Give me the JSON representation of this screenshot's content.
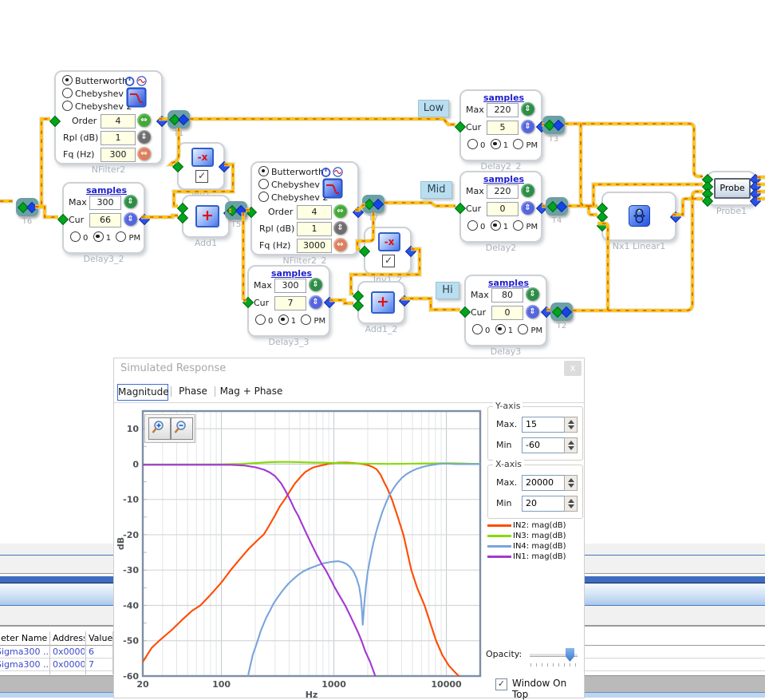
{
  "schematic": {
    "filters": [
      {
        "label": "NFilter2",
        "opt1": "Butterworth",
        "opt2": "Chebyshev 1",
        "opt3": "Chebyshev 2",
        "order_label": "Order",
        "order": "4",
        "rpl_label": "Rpl (dB)",
        "rpl": "1",
        "fq_label": "Fq (Hz)",
        "fq": "300",
        "selected_option": "Butterworth"
      },
      {
        "label": "NFilter2_2",
        "opt1": "Butterworth",
        "opt2": "Chebyshev 1",
        "opt3": "Chebyshev 2",
        "order_label": "Order",
        "order": "4",
        "rpl_label": "Rpl (dB)",
        "rpl": "1",
        "fq_label": "Fq (Hz)",
        "fq": "3000",
        "selected_option": "Butterworth"
      }
    ],
    "delays": [
      {
        "label": "Delay3_2",
        "link": "samples",
        "max_label": "Max",
        "max": "300",
        "cur_label": "Cur",
        "cur": "66",
        "opt0": "0",
        "opt1": "1",
        "optpm": "PM",
        "selected_option": "1"
      },
      {
        "label": "Delay3_3",
        "link": "samples",
        "max_label": "Max",
        "max": "300",
        "cur_label": "Cur",
        "cur": "7",
        "opt0": "0",
        "opt1": "1",
        "optpm": "PM",
        "selected_option": "1"
      },
      {
        "label": "Delay2_2",
        "link": "samples",
        "max_label": "Max",
        "max": "220",
        "cur_label": "Cur",
        "cur": "5",
        "opt0": "0",
        "opt1": "1",
        "optpm": "PM",
        "selected_option": "1"
      },
      {
        "label": "Delay2",
        "link": "samples",
        "max_label": "Max",
        "max": "220",
        "cur_label": "Cur",
        "cur": "0",
        "opt0": "0",
        "opt1": "1",
        "optpm": "PM",
        "selected_option": "1"
      },
      {
        "label": "Delay3",
        "link": "samples",
        "max_label": "Max",
        "max": "80",
        "cur_label": "Cur",
        "cur": "0",
        "opt0": "0",
        "opt1": "1",
        "optpm": "PM",
        "selected_option": "1"
      }
    ],
    "inverters": [
      {
        "label": "Inv1",
        "glyph": "-x",
        "checked": true
      },
      {
        "label": "Inv1_2",
        "glyph": "-x",
        "checked": true
      }
    ],
    "adders": [
      {
        "label": "Add1",
        "glyph": "+"
      },
      {
        "label": "Add1_2",
        "glyph": "+"
      }
    ],
    "tnodes": [
      {
        "label": "T6"
      },
      {
        "label": "T1"
      },
      {
        "label": "T5"
      },
      {
        "label": "T7"
      },
      {
        "label": "T3"
      },
      {
        "label": "T4"
      },
      {
        "label": "T2"
      }
    ],
    "tags": [
      {
        "text": "Low"
      },
      {
        "text": "Mid"
      },
      {
        "text": "Hi"
      }
    ],
    "mixer": {
      "label": "Nx1 Linear1"
    },
    "probe": {
      "button": "Probe",
      "label": "Probe1"
    }
  },
  "window": {
    "title": "Simulated Response",
    "close_glyph": "x",
    "tabs": [
      {
        "label": "Magnitude",
        "selected": true
      },
      {
        "label": "Phase",
        "selected": false
      },
      {
        "label": "Mag + Phase",
        "selected": false
      }
    ],
    "y_axis": {
      "title": "Y-axis",
      "max_label": "Max.",
      "max": "15",
      "min_label": "Min",
      "min": "-60"
    },
    "x_axis": {
      "title": "X-axis",
      "max_label": "Max.",
      "max": "20000",
      "min_label": "Min",
      "min": "20"
    },
    "legend": [
      {
        "label": "IN2: mag(dB)",
        "color": "#FF4B00"
      },
      {
        "label": "IN3: mag(dB)",
        "color": "#86DC00"
      },
      {
        "label": "IN4: mag(dB)",
        "color": "#7AA4DC"
      },
      {
        "label": "IN1: mag(dB)",
        "color": "#A238D2"
      }
    ],
    "opacity_label": "Opacity:",
    "window_on_top_label": "Window On Top",
    "window_on_top_checked": true
  },
  "table": {
    "headers": [
      "eter Name",
      "Address",
      "Value"
    ],
    "rows": [
      {
        "name": "Sigma300 ...",
        "address": "0x0000",
        "value": "6"
      },
      {
        "name": "Sigma300 ...",
        "address": "0x0000",
        "value": "7"
      }
    ]
  },
  "chart_data": {
    "type": "line",
    "x_scale": "log",
    "xlim": [
      20,
      20000
    ],
    "ylim": [
      -60,
      15
    ],
    "xticks": [
      20,
      100,
      1000,
      10000
    ],
    "yticks": [
      10,
      0,
      -10,
      -20,
      -30,
      -40,
      -50,
      -60
    ],
    "xlabel": "Hz",
    "ylabel": "dB",
    "grid": true,
    "legend_position": "right",
    "series": [
      {
        "name": "IN2: mag(dB)",
        "color": "#FF4B00",
        "points": [
          [
            20,
            -56
          ],
          [
            24,
            -52
          ],
          [
            28,
            -50
          ],
          [
            36,
            -47
          ],
          [
            45,
            -44
          ],
          [
            55,
            -41.5
          ],
          [
            65,
            -40
          ],
          [
            80,
            -37
          ],
          [
            100,
            -33.5
          ],
          [
            121,
            -30
          ],
          [
            145,
            -27
          ],
          [
            175,
            -24
          ],
          [
            210,
            -21.5
          ],
          [
            237,
            -20
          ],
          [
            265,
            -17.5
          ],
          [
            300,
            -14.5
          ],
          [
            330,
            -12
          ],
          [
            366,
            -10
          ],
          [
            410,
            -7.5
          ],
          [
            450,
            -5.5
          ],
          [
            510,
            -3.5
          ],
          [
            560,
            -2.2
          ],
          [
            640,
            -1.1
          ],
          [
            700,
            -0.7
          ],
          [
            800,
            -0.3
          ],
          [
            900,
            0.1
          ],
          [
            1100,
            0.4
          ],
          [
            1300,
            0.4
          ],
          [
            1500,
            0.3
          ],
          [
            1800,
            0
          ],
          [
            2000,
            -0.3
          ],
          [
            2200,
            -0.8
          ],
          [
            2400,
            -1.5
          ],
          [
            2600,
            -3
          ],
          [
            2780,
            -5
          ],
          [
            3000,
            -7
          ],
          [
            3280,
            -10
          ],
          [
            3700,
            -15
          ],
          [
            4150,
            -20
          ],
          [
            4500,
            -25
          ],
          [
            4880,
            -30
          ],
          [
            5500,
            -35
          ],
          [
            6400,
            -40
          ],
          [
            7200,
            -45
          ],
          [
            8100,
            -50
          ],
          [
            9200,
            -54
          ],
          [
            10500,
            -57
          ],
          [
            12000,
            -59
          ],
          [
            14000,
            -61
          ]
        ]
      },
      {
        "name": "IN3: mag(dB)",
        "color": "#86DC00",
        "points": [
          [
            20,
            -0.15
          ],
          [
            100,
            -0.1
          ],
          [
            150,
            0.05
          ],
          [
            200,
            0.3
          ],
          [
            250,
            0.5
          ],
          [
            320,
            0.6
          ],
          [
            400,
            0.6
          ],
          [
            500,
            0.55
          ],
          [
            650,
            0.45
          ],
          [
            800,
            0.4
          ],
          [
            1000,
            0.35
          ],
          [
            1300,
            0.25
          ],
          [
            1700,
            0.15
          ],
          [
            2200,
            0.1
          ],
          [
            3000,
            0.05
          ],
          [
            4500,
            0.1
          ],
          [
            6000,
            0.15
          ],
          [
            8000,
            0.2
          ],
          [
            10000,
            0.25
          ],
          [
            13000,
            0.2
          ],
          [
            17000,
            0.1
          ],
          [
            20000,
            0.1
          ]
        ]
      },
      {
        "name": "IN4: mag(dB)",
        "color": "#7AA4DC",
        "points": [
          [
            165,
            -64
          ],
          [
            175,
            -59
          ],
          [
            190,
            -54
          ],
          [
            205,
            -51
          ],
          [
            225,
            -47
          ],
          [
            250,
            -43.5
          ],
          [
            270,
            -41.5
          ],
          [
            290,
            -39.5
          ],
          [
            320,
            -37.5
          ],
          [
            350,
            -35.8
          ],
          [
            390,
            -34
          ],
          [
            430,
            -32.7
          ],
          [
            480,
            -31.4
          ],
          [
            540,
            -30.3
          ],
          [
            610,
            -29.5
          ],
          [
            700,
            -28.8
          ],
          [
            800,
            -28.1
          ],
          [
            900,
            -27.8
          ],
          [
            1000,
            -27.6
          ],
          [
            1100,
            -27.5
          ],
          [
            1200,
            -27.8
          ],
          [
            1300,
            -28.3
          ],
          [
            1400,
            -29.2
          ],
          [
            1500,
            -30.5
          ],
          [
            1600,
            -32.5
          ],
          [
            1680,
            -34.8
          ],
          [
            1740,
            -38
          ],
          [
            1780,
            -42
          ],
          [
            1805,
            -45.5
          ],
          [
            1830,
            -43
          ],
          [
            1870,
            -39
          ],
          [
            1930,
            -34.5
          ],
          [
            2000,
            -30.5
          ],
          [
            2100,
            -26.8
          ],
          [
            2220,
            -23
          ],
          [
            2350,
            -19.8
          ],
          [
            2500,
            -16.8
          ],
          [
            2700,
            -13.5
          ],
          [
            2900,
            -11
          ],
          [
            3100,
            -9
          ],
          [
            3400,
            -6.8
          ],
          [
            3700,
            -5.2
          ],
          [
            4000,
            -4
          ],
          [
            4400,
            -2.9
          ],
          [
            4900,
            -2
          ],
          [
            5500,
            -1.3
          ],
          [
            6200,
            -0.8
          ],
          [
            7000,
            -0.4
          ],
          [
            8000,
            -0.1
          ],
          [
            9000,
            0.1
          ],
          [
            10500,
            0.1
          ],
          [
            12000,
            0
          ],
          [
            15000,
            0
          ],
          [
            20000,
            0
          ]
        ]
      },
      {
        "name": "IN1: mag(dB)",
        "color": "#A238D2",
        "points": [
          [
            20,
            -0.2
          ],
          [
            120,
            -0.2
          ],
          [
            160,
            -0.4
          ],
          [
            200,
            -0.9
          ],
          [
            240,
            -1.6
          ],
          [
            270,
            -2.4
          ],
          [
            300,
            -3.4
          ],
          [
            340,
            -5.5
          ],
          [
            370,
            -7.5
          ],
          [
            407,
            -10
          ],
          [
            450,
            -13
          ],
          [
            480,
            -14.5
          ],
          [
            530,
            -17.5
          ],
          [
            576,
            -20
          ],
          [
            640,
            -23
          ],
          [
            700,
            -25.5
          ],
          [
            770,
            -28
          ],
          [
            846,
            -30
          ],
          [
            950,
            -33
          ],
          [
            1000,
            -34.5
          ],
          [
            1100,
            -36.8
          ],
          [
            1260,
            -40
          ],
          [
            1400,
            -43
          ],
          [
            1500,
            -45
          ],
          [
            1650,
            -47.8
          ],
          [
            1760,
            -50
          ],
          [
            1900,
            -53
          ],
          [
            2100,
            -56
          ],
          [
            2300,
            -59.5
          ],
          [
            2500,
            -63
          ]
        ]
      }
    ]
  }
}
